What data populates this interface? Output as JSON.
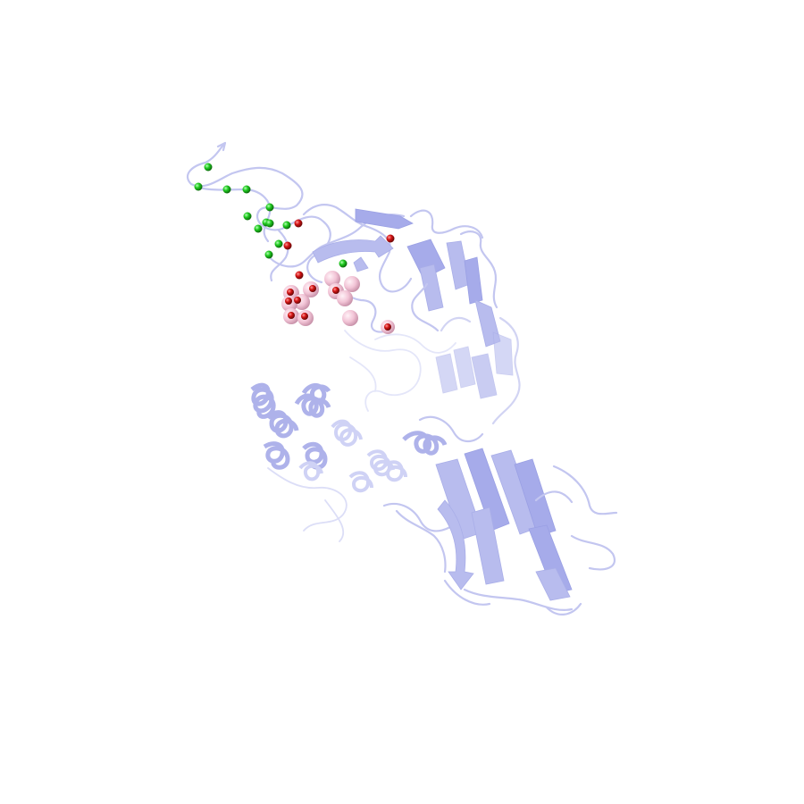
{
  "image": {
    "background_color": "#ffffff",
    "subject": "protein-cartoon",
    "colors": {
      "cartoon": "#c3c6f0",
      "cartoon_shaded": "#a6abea",
      "green_spheres": "#22cc22",
      "red_spheres": "#cc1111",
      "pink_spheres": "#f2c4d6"
    }
  }
}
